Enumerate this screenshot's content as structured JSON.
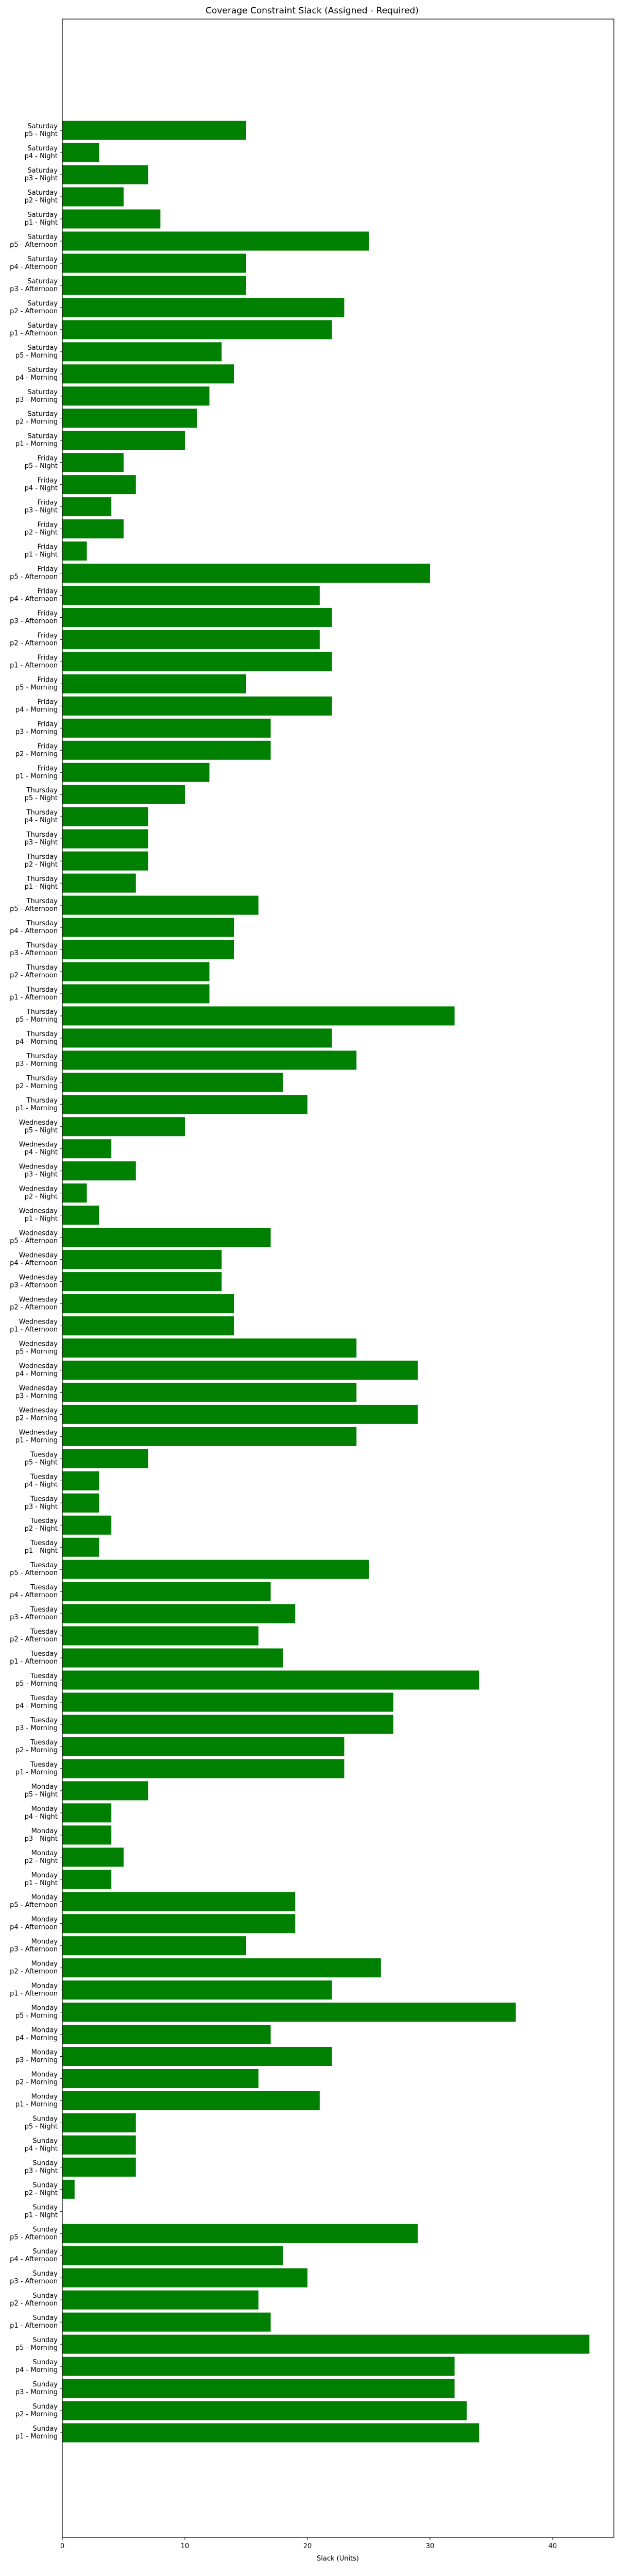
{
  "chart_data": {
    "type": "bar",
    "orientation": "horizontal",
    "title": "Coverage Constraint Slack (Assigned - Required)",
    "xlabel": "Slack (Units)",
    "ylabel": "",
    "xlim": [
      0,
      45
    ],
    "x_ticks": [
      0,
      10,
      20,
      30,
      40
    ],
    "grid": false,
    "bar_color": "#008000",
    "categories": [
      [
        "Sunday",
        "p1 - Morning"
      ],
      [
        "Sunday",
        "p2 - Morning"
      ],
      [
        "Sunday",
        "p3 - Morning"
      ],
      [
        "Sunday",
        "p4 - Morning"
      ],
      [
        "Sunday",
        "p5 - Morning"
      ],
      [
        "Sunday",
        "p1 - Afternoon"
      ],
      [
        "Sunday",
        "p2 - Afternoon"
      ],
      [
        "Sunday",
        "p3 - Afternoon"
      ],
      [
        "Sunday",
        "p4 - Afternoon"
      ],
      [
        "Sunday",
        "p5 - Afternoon"
      ],
      [
        "Sunday",
        "p1 - Night"
      ],
      [
        "Sunday",
        "p2 - Night"
      ],
      [
        "Sunday",
        "p3 - Night"
      ],
      [
        "Sunday",
        "p4 - Night"
      ],
      [
        "Sunday",
        "p5 - Night"
      ],
      [
        "Monday",
        "p1 - Morning"
      ],
      [
        "Monday",
        "p2 - Morning"
      ],
      [
        "Monday",
        "p3 - Morning"
      ],
      [
        "Monday",
        "p4 - Morning"
      ],
      [
        "Monday",
        "p5 - Morning"
      ],
      [
        "Monday",
        "p1 - Afternoon"
      ],
      [
        "Monday",
        "p2 - Afternoon"
      ],
      [
        "Monday",
        "p3 - Afternoon"
      ],
      [
        "Monday",
        "p4 - Afternoon"
      ],
      [
        "Monday",
        "p5 - Afternoon"
      ],
      [
        "Monday",
        "p1 - Night"
      ],
      [
        "Monday",
        "p2 - Night"
      ],
      [
        "Monday",
        "p3 - Night"
      ],
      [
        "Monday",
        "p4 - Night"
      ],
      [
        "Monday",
        "p5 - Night"
      ],
      [
        "Tuesday",
        "p1 - Morning"
      ],
      [
        "Tuesday",
        "p2 - Morning"
      ],
      [
        "Tuesday",
        "p3 - Morning"
      ],
      [
        "Tuesday",
        "p4 - Morning"
      ],
      [
        "Tuesday",
        "p5 - Morning"
      ],
      [
        "Tuesday",
        "p1 - Afternoon"
      ],
      [
        "Tuesday",
        "p2 - Afternoon"
      ],
      [
        "Tuesday",
        "p3 - Afternoon"
      ],
      [
        "Tuesday",
        "p4 - Afternoon"
      ],
      [
        "Tuesday",
        "p5 - Afternoon"
      ],
      [
        "Tuesday",
        "p1 - Night"
      ],
      [
        "Tuesday",
        "p2 - Night"
      ],
      [
        "Tuesday",
        "p3 - Night"
      ],
      [
        "Tuesday",
        "p4 - Night"
      ],
      [
        "Tuesday",
        "p5 - Night"
      ],
      [
        "Wednesday",
        "p1 - Morning"
      ],
      [
        "Wednesday",
        "p2 - Morning"
      ],
      [
        "Wednesday",
        "p3 - Morning"
      ],
      [
        "Wednesday",
        "p4 - Morning"
      ],
      [
        "Wednesday",
        "p5 - Morning"
      ],
      [
        "Wednesday",
        "p1 - Afternoon"
      ],
      [
        "Wednesday",
        "p2 - Afternoon"
      ],
      [
        "Wednesday",
        "p3 - Afternoon"
      ],
      [
        "Wednesday",
        "p4 - Afternoon"
      ],
      [
        "Wednesday",
        "p5 - Afternoon"
      ],
      [
        "Wednesday",
        "p1 - Night"
      ],
      [
        "Wednesday",
        "p2 - Night"
      ],
      [
        "Wednesday",
        "p3 - Night"
      ],
      [
        "Wednesday",
        "p4 - Night"
      ],
      [
        "Wednesday",
        "p5 - Night"
      ],
      [
        "Thursday",
        "p1 - Morning"
      ],
      [
        "Thursday",
        "p2 - Morning"
      ],
      [
        "Thursday",
        "p3 - Morning"
      ],
      [
        "Thursday",
        "p4 - Morning"
      ],
      [
        "Thursday",
        "p5 - Morning"
      ],
      [
        "Thursday",
        "p1 - Afternoon"
      ],
      [
        "Thursday",
        "p2 - Afternoon"
      ],
      [
        "Thursday",
        "p3 - Afternoon"
      ],
      [
        "Thursday",
        "p4 - Afternoon"
      ],
      [
        "Thursday",
        "p5 - Afternoon"
      ],
      [
        "Thursday",
        "p1 - Night"
      ],
      [
        "Thursday",
        "p2 - Night"
      ],
      [
        "Thursday",
        "p3 - Night"
      ],
      [
        "Thursday",
        "p4 - Night"
      ],
      [
        "Thursday",
        "p5 - Night"
      ],
      [
        "Friday",
        "p1 - Morning"
      ],
      [
        "Friday",
        "p2 - Morning"
      ],
      [
        "Friday",
        "p3 - Morning"
      ],
      [
        "Friday",
        "p4 - Morning"
      ],
      [
        "Friday",
        "p5 - Morning"
      ],
      [
        "Friday",
        "p1 - Afternoon"
      ],
      [
        "Friday",
        "p2 - Afternoon"
      ],
      [
        "Friday",
        "p3 - Afternoon"
      ],
      [
        "Friday",
        "p4 - Afternoon"
      ],
      [
        "Friday",
        "p5 - Afternoon"
      ],
      [
        "Friday",
        "p1 - Night"
      ],
      [
        "Friday",
        "p2 - Night"
      ],
      [
        "Friday",
        "p3 - Night"
      ],
      [
        "Friday",
        "p4 - Night"
      ],
      [
        "Friday",
        "p5 - Night"
      ],
      [
        "Saturday",
        "p1 - Morning"
      ],
      [
        "Saturday",
        "p2 - Morning"
      ],
      [
        "Saturday",
        "p3 - Morning"
      ],
      [
        "Saturday",
        "p4 - Morning"
      ],
      [
        "Saturday",
        "p5 - Morning"
      ],
      [
        "Saturday",
        "p1 - Afternoon"
      ],
      [
        "Saturday",
        "p2 - Afternoon"
      ],
      [
        "Saturday",
        "p3 - Afternoon"
      ],
      [
        "Saturday",
        "p4 - Afternoon"
      ],
      [
        "Saturday",
        "p5 - Afternoon"
      ],
      [
        "Saturday",
        "p1 - Night"
      ],
      [
        "Saturday",
        "p2 - Night"
      ],
      [
        "Saturday",
        "p3 - Night"
      ],
      [
        "Saturday",
        "p4 - Night"
      ],
      [
        "Saturday",
        "p5 - Night"
      ]
    ],
    "values": [
      34,
      33,
      32,
      32,
      43,
      17,
      16,
      20,
      18,
      29,
      0,
      1,
      6,
      6,
      6,
      21,
      16,
      22,
      17,
      37,
      22,
      26,
      15,
      19,
      19,
      4,
      5,
      4,
      4,
      7,
      23,
      23,
      27,
      27,
      34,
      18,
      16,
      19,
      17,
      25,
      3,
      4,
      3,
      3,
      7,
      24,
      29,
      24,
      29,
      24,
      14,
      14,
      13,
      13,
      17,
      3,
      2,
      6,
      4,
      10,
      20,
      18,
      24,
      22,
      32,
      12,
      12,
      14,
      14,
      16,
      6,
      7,
      7,
      7,
      10,
      12,
      17,
      17,
      22,
      15,
      22,
      21,
      22,
      21,
      30,
      2,
      5,
      4,
      6,
      5,
      10,
      11,
      12,
      14,
      13,
      22,
      23,
      15,
      15,
      25,
      8,
      5,
      7,
      3,
      15
    ]
  }
}
